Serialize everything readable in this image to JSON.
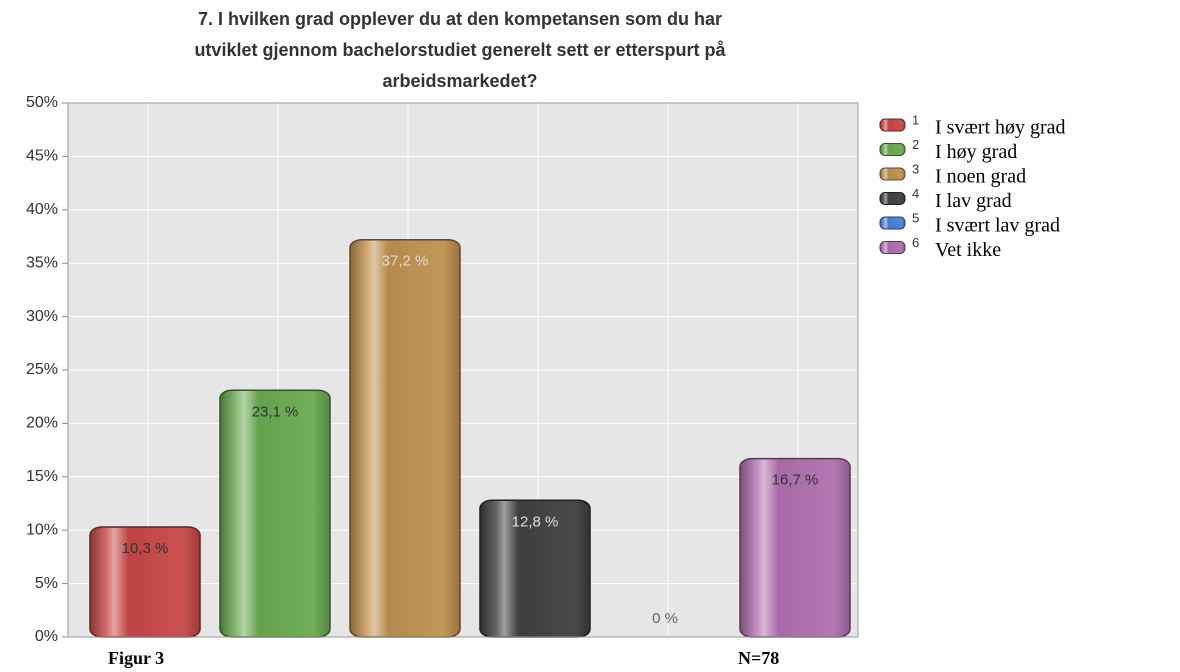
{
  "chart_data": {
    "type": "bar",
    "title": [
      "7. I hvilken grad opplever du at den kompetansen som du har",
      "utviklet gjennom bachelorstudiet generelt sett er etterspurt på",
      "arbeidsmarkedet?"
    ],
    "categories": [
      "1",
      "2",
      "3",
      "4",
      "5",
      "6"
    ],
    "series": [
      {
        "name": "1",
        "color": "#c84848"
      },
      {
        "name": "2",
        "color": "#6aaa50"
      },
      {
        "name": "3",
        "color": "#c09050"
      },
      {
        "name": "4",
        "color": "#404040"
      },
      {
        "name": "5",
        "color": "#4a80d8"
      },
      {
        "name": "6",
        "color": "#b070b0"
      }
    ],
    "legend_descriptions": [
      "I svært høy grad",
      "I høy grad",
      "I noen grad",
      "I lav grad",
      "I svært lav grad",
      "Vet ikke"
    ],
    "values": [
      10.3,
      23.1,
      37.2,
      12.8,
      0,
      16.7
    ],
    "value_labels": [
      "10,3 %",
      "23,1 %",
      "37,2 %",
      "12,8 %",
      "0 %",
      "16,7 %"
    ],
    "ylim": [
      0,
      50
    ],
    "yticks": [
      {
        "value": 0,
        "label": "0%"
      },
      {
        "value": 5,
        "label": "5%"
      },
      {
        "value": 10,
        "label": "10%"
      },
      {
        "value": 15,
        "label": "15%"
      },
      {
        "value": 20,
        "label": "20%"
      },
      {
        "value": 25,
        "label": "25%"
      },
      {
        "value": 30,
        "label": "30%"
      },
      {
        "value": 35,
        "label": "35%"
      },
      {
        "value": 40,
        "label": "40%"
      },
      {
        "value": 45,
        "label": "45%"
      },
      {
        "value": 50,
        "label": "50%"
      }
    ],
    "grid": true,
    "legend": "right",
    "footer_left": "Figur 3",
    "footer_right": "N=78"
  }
}
